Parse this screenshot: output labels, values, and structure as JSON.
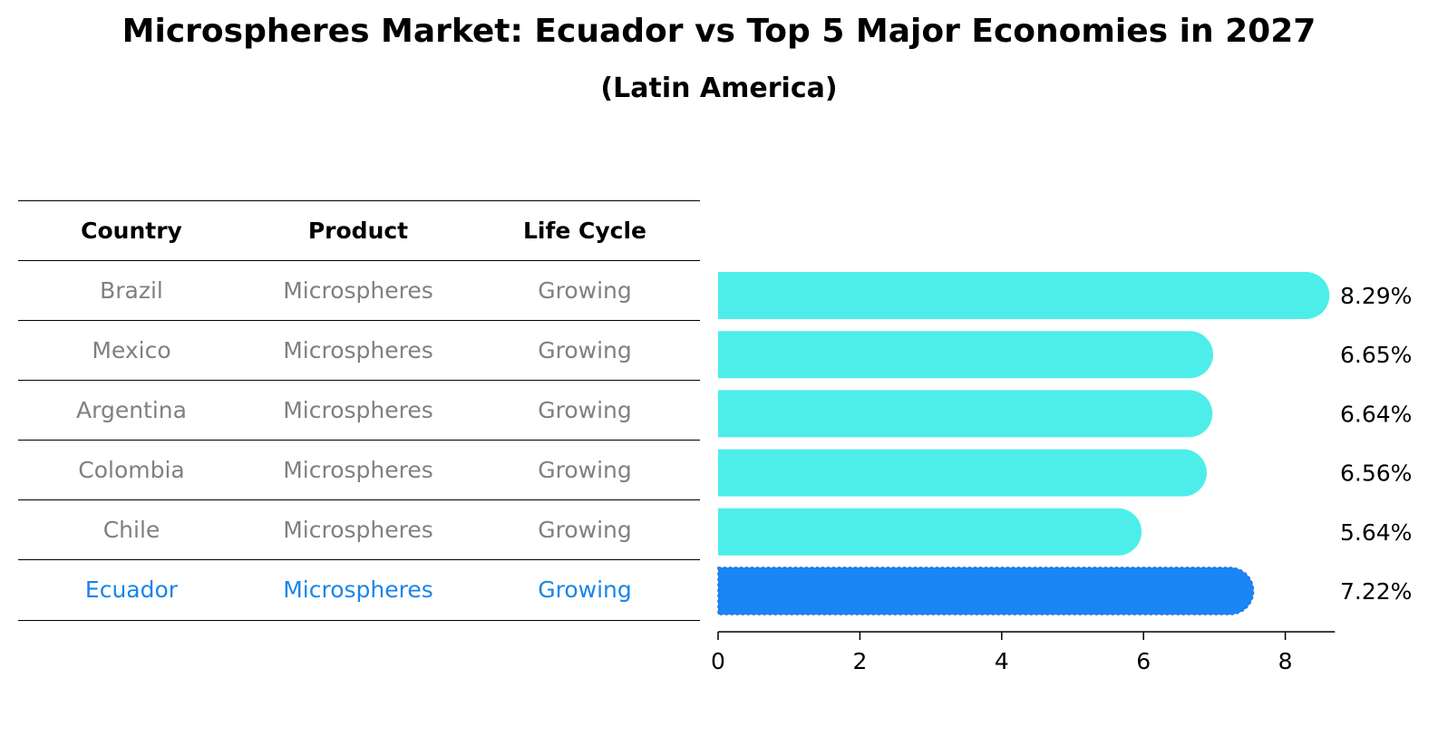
{
  "title": "Microspheres Market: Ecuador vs Top 5 Major Economies in 2027",
  "subtitle": "(Latin America)",
  "table": {
    "headers": [
      "Country",
      "Product",
      "Life Cycle"
    ],
    "rows": [
      {
        "country": "Brazil",
        "product": "Microspheres",
        "life_cycle": "Growing"
      },
      {
        "country": "Mexico",
        "product": "Microspheres",
        "life_cycle": "Growing"
      },
      {
        "country": "Argentina",
        "product": "Microspheres",
        "life_cycle": "Growing"
      },
      {
        "country": "Colombia",
        "product": "Microspheres",
        "life_cycle": "Growing"
      },
      {
        "country": "Chile",
        "product": "Microspheres",
        "life_cycle": "Growing"
      },
      {
        "country": "Ecuador",
        "product": "Microspheres",
        "life_cycle": "Growing"
      }
    ]
  },
  "colors": {
    "bar": "#4deeea",
    "highlight": "#1a85f5",
    "muted_text": "#808080",
    "highlight_text": "#1a85e8"
  },
  "chart_data": {
    "type": "bar",
    "orientation": "horizontal",
    "categories": [
      "Brazil",
      "Mexico",
      "Argentina",
      "Colombia",
      "Chile",
      "Ecuador"
    ],
    "values": [
      8.29,
      6.65,
      6.64,
      6.56,
      5.64,
      7.22
    ],
    "labels": [
      "8.29%",
      "6.65%",
      "6.64%",
      "6.56%",
      "5.64%",
      "7.22%"
    ],
    "highlight": "Ecuador",
    "xlim": [
      0,
      8.7
    ],
    "xticks": [
      0,
      2,
      4,
      6,
      8
    ],
    "title": "Microspheres Market: Ecuador vs Top 5 Major Economies in 2027",
    "xlabel": "",
    "ylabel": ""
  }
}
